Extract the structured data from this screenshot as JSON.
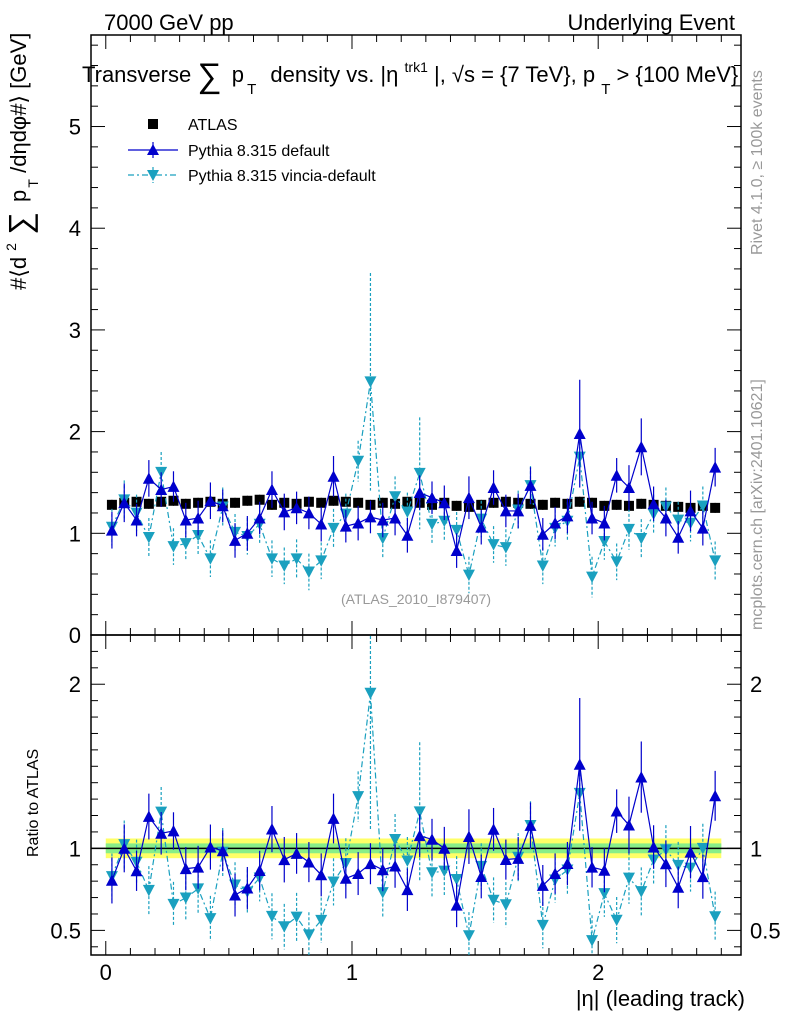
{
  "header": {
    "left": "7000 GeV pp",
    "right": "Underlying Event"
  },
  "side_labels": {
    "rivet": "Rivet 4.1.0, ≥ 100k events",
    "mcplots": "mcplots.cern.ch [arXiv:2401.10621]"
  },
  "colors": {
    "atlas": "#000000",
    "default": "#0000cc",
    "vincia": "#1aa0bf",
    "band_inner": "#88ee88",
    "band_outer": "#ffff66"
  },
  "chart_data": {
    "type": "scatter",
    "title": "Transverse ∑ p_T density vs. |η^trk1|, √s = {7 TeV}, p_T > {100 MeV}",
    "title_parts": {
      "a": "Transverse",
      "sum": "∑",
      "p": "p",
      "T": "T",
      "b": "density vs. |η",
      "trk1": "trk1",
      "c": "|, √s = {7 TeV}, p",
      "T2": "T",
      "d": " > {100 MeV}"
    },
    "ylabel": "#⟨d² ∑ p_T /dηdφ#⟩ [GeV]",
    "ylabel_parts": {
      "pre": "#⟨d",
      "two": "2",
      "sum": "∑",
      "p": "p",
      "T": "T",
      "post": " /dηdφ#⟩ [GeV]"
    },
    "xlabel": "|η| (leading track)",
    "ratio_ylabel": "Ratio to ATLAS",
    "analysis_tag": "(ATLAS_2010_I879407)",
    "xlim": [
      -0.06,
      2.58
    ],
    "ylim": [
      0,
      5.9
    ],
    "ratio_ylim": [
      0.35,
      2.3
    ],
    "xticks": [
      "0",
      "1",
      "2"
    ],
    "yticks": [
      "0",
      "1",
      "2",
      "3",
      "4",
      "5"
    ],
    "ratio_yticks": [
      "0.5",
      "1",
      "2"
    ],
    "legend": {
      "atlas": "ATLAS",
      "default": "Pythia 8.315 default",
      "vincia": "Pythia 8.315 vincia-default"
    },
    "x": [
      0.025,
      0.075,
      0.125,
      0.175,
      0.225,
      0.275,
      0.325,
      0.375,
      0.425,
      0.475,
      0.525,
      0.575,
      0.625,
      0.675,
      0.725,
      0.775,
      0.825,
      0.875,
      0.925,
      0.975,
      1.025,
      1.075,
      1.125,
      1.175,
      1.225,
      1.275,
      1.325,
      1.375,
      1.425,
      1.475,
      1.525,
      1.575,
      1.625,
      1.675,
      1.725,
      1.775,
      1.825,
      1.875,
      1.925,
      1.975,
      2.025,
      2.075,
      2.125,
      2.175,
      2.225,
      2.275,
      2.325,
      2.375,
      2.425,
      2.475
    ],
    "series": [
      {
        "name": "ATLAS",
        "values": [
          1.28,
          1.3,
          1.31,
          1.29,
          1.31,
          1.32,
          1.29,
          1.3,
          1.31,
          1.29,
          1.3,
          1.32,
          1.33,
          1.28,
          1.3,
          1.29,
          1.31,
          1.3,
          1.32,
          1.31,
          1.3,
          1.28,
          1.3,
          1.29,
          1.31,
          1.3,
          1.28,
          1.3,
          1.27,
          1.26,
          1.28,
          1.3,
          1.31,
          1.3,
          1.29,
          1.28,
          1.3,
          1.29,
          1.31,
          1.3,
          1.27,
          1.28,
          1.27,
          1.29,
          1.28,
          1.27,
          1.26,
          1.25,
          1.27,
          1.25
        ]
      },
      {
        "name": "Pythia 8.315 default",
        "values": [
          1.03,
          1.3,
          1.13,
          1.54,
          1.43,
          1.46,
          1.13,
          1.15,
          1.32,
          1.27,
          0.93,
          1.0,
          1.15,
          1.43,
          1.21,
          1.25,
          1.2,
          1.09,
          1.56,
          1.07,
          1.1,
          1.16,
          1.13,
          1.15,
          0.98,
          1.4,
          1.35,
          1.3,
          0.83,
          1.35,
          1.06,
          1.45,
          1.22,
          1.22,
          1.47,
          0.99,
          1.1,
          1.17,
          1.98,
          1.15,
          1.1,
          1.57,
          1.45,
          1.85,
          1.29,
          1.15,
          0.96,
          1.22,
          1.05,
          1.65
        ]
      },
      {
        "name": "Pythia 8.315 vincia-default",
        "values": [
          1.06,
          1.33,
          1.2,
          0.96,
          1.6,
          0.87,
          0.9,
          0.98,
          0.75,
          1.26,
          1.01,
          0.97,
          1.09,
          0.75,
          0.68,
          0.75,
          0.62,
          0.73,
          1.05,
          1.19,
          1.71,
          2.49,
          0.95,
          1.36,
          1.21,
          1.59,
          1.09,
          1.12,
          1.03,
          0.59,
          1.14,
          0.89,
          0.86,
          1.23,
          1.47,
          0.68,
          1.05,
          1.12,
          1.75,
          0.57,
          0.92,
          0.72,
          1.04,
          0.95,
          1.19,
          1.26,
          1.13,
          1.1,
          1.27,
          0.73
        ]
      }
    ],
    "errors": {
      "default": [
        0.18,
        0.19,
        0.16,
        0.18,
        0.17,
        0.15,
        0.17,
        0.17,
        0.18,
        0.16,
        0.17,
        0.17,
        0.16,
        0.18,
        0.18,
        0.16,
        0.16,
        0.17,
        0.2,
        0.16,
        0.17,
        0.16,
        0.17,
        0.17,
        0.17,
        0.17,
        0.16,
        0.17,
        0.17,
        0.21,
        0.17,
        0.17,
        0.16,
        0.17,
        0.18,
        0.16,
        0.16,
        0.17,
        0.53,
        0.16,
        0.17,
        0.17,
        0.22,
        0.28,
        0.17,
        0.18,
        0.16,
        0.2,
        0.17,
        0.19
      ],
      "vincia": [
        0.18,
        0.19,
        0.18,
        0.19,
        0.2,
        0.18,
        0.17,
        0.19,
        0.18,
        0.19,
        0.18,
        0.18,
        0.19,
        0.18,
        0.18,
        0.19,
        0.18,
        0.18,
        0.19,
        0.2,
        0.2,
        1.07,
        0.19,
        0.2,
        0.19,
        0.55,
        0.19,
        0.19,
        0.18,
        0.18,
        0.18,
        0.18,
        0.18,
        0.19,
        0.19,
        0.18,
        0.18,
        0.19,
        0.2,
        0.2,
        0.18,
        0.18,
        0.2,
        0.19,
        0.19,
        0.19,
        0.18,
        0.18,
        0.19,
        0.19
      ]
    },
    "ratio_band": {
      "inner": 0.03,
      "outer": 0.06
    }
  }
}
